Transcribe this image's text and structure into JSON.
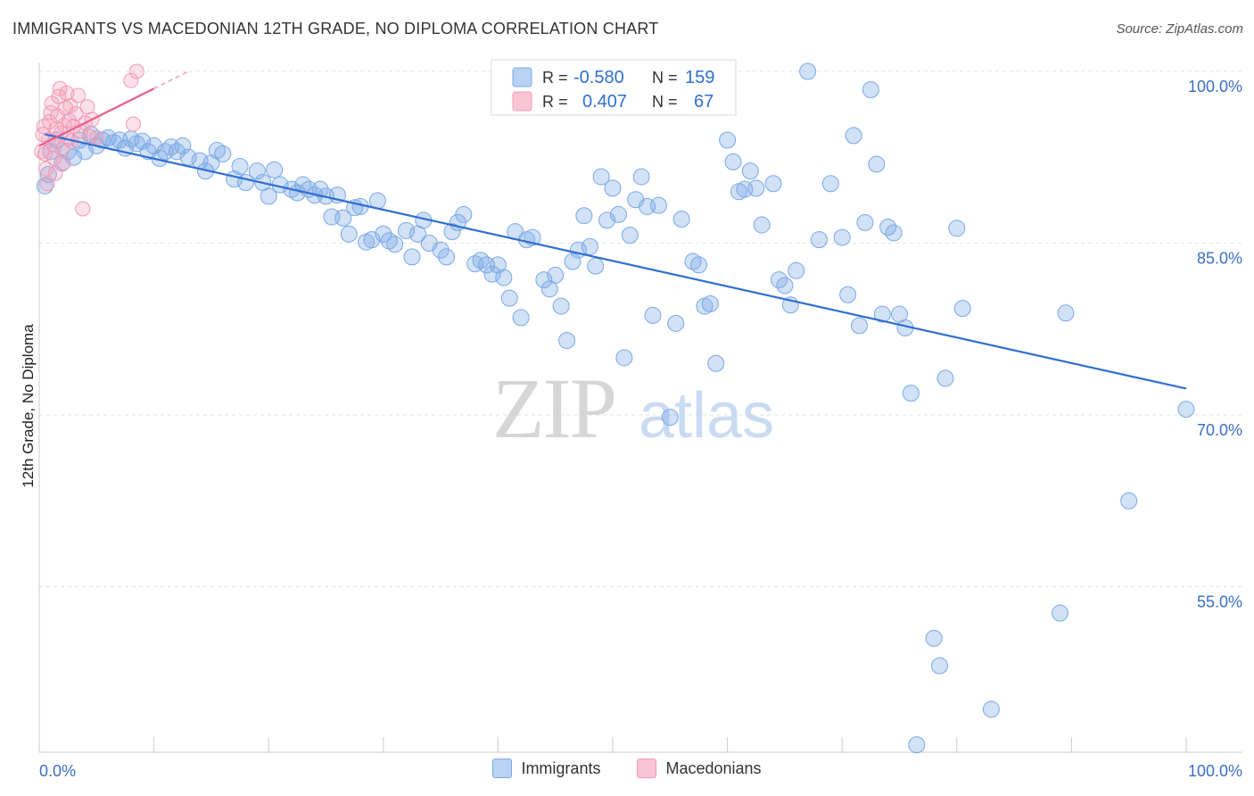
{
  "title": "IMMIGRANTS VS MACEDONIAN 12TH GRADE, NO DIPLOMA CORRELATION CHART",
  "source": "Source: ZipAtlas.com",
  "watermark": {
    "zip": "ZIP",
    "atlas": "atlas"
  },
  "legend_top": [
    {
      "r_label": "R =",
      "r_value": "-0.580",
      "n_label": "N =",
      "n_value": "159"
    },
    {
      "r_label": "R =",
      "r_value": "0.407",
      "n_label": "N =",
      "n_value": "67"
    }
  ],
  "legend_bottom": [
    "Immigrants",
    "Macedonians"
  ],
  "colors": {
    "immigrants": "#7aa8e6",
    "immigrants_line": "#2f6fd1",
    "macedonians": "#f29ab5",
    "macedonians_line": "#e75f8c",
    "axis_text": "#3a6fc4"
  },
  "chart_data": {
    "type": "scatter",
    "title": "IMMIGRANTS VS MACEDONIAN 12TH GRADE, NO DIPLOMA CORRELATION CHART",
    "xlabel": "",
    "ylabel": "12th Grade, No Diploma",
    "xlim": [
      0,
      100
    ],
    "ylim": [
      40,
      101
    ],
    "x_tick_labels": [
      "0.0%",
      "100.0%"
    ],
    "y_ticks": [
      100,
      85,
      70,
      55
    ],
    "y_tick_labels": [
      "100.0%",
      "85.0%",
      "70.0%",
      "55.0%"
    ],
    "grid": true,
    "series": [
      {
        "name": "Immigrants",
        "r": -0.58,
        "n": 159,
        "trend": [
          [
            0.5,
            94.5
          ],
          [
            100,
            72.3
          ]
        ],
        "points": [
          [
            0.5,
            90
          ],
          [
            0.8,
            91
          ],
          [
            1,
            93
          ],
          [
            1.5,
            94
          ],
          [
            2,
            92
          ],
          [
            2.5,
            93
          ],
          [
            3,
            92.5
          ],
          [
            3.5,
            94
          ],
          [
            4,
            93
          ],
          [
            4.5,
            94.5
          ],
          [
            5,
            93.5
          ],
          [
            5.5,
            94
          ],
          [
            6,
            94.2
          ],
          [
            6.5,
            93.8
          ],
          [
            7,
            94
          ],
          [
            7.5,
            93.3
          ],
          [
            8,
            94.1
          ],
          [
            8.5,
            93.7
          ],
          [
            9,
            93.9
          ],
          [
            9.5,
            93
          ],
          [
            10,
            93.5
          ],
          [
            10.5,
            92.4
          ],
          [
            11,
            93
          ],
          [
            11.5,
            93.4
          ],
          [
            12,
            93
          ],
          [
            12.5,
            93.5
          ],
          [
            13,
            92.5
          ],
          [
            14,
            92.2
          ],
          [
            14.5,
            91.3
          ],
          [
            15,
            92
          ],
          [
            15.5,
            93.1
          ],
          [
            16,
            92.8
          ],
          [
            17,
            90.6
          ],
          [
            17.5,
            91.7
          ],
          [
            18,
            90.3
          ],
          [
            19,
            91.3
          ],
          [
            19.5,
            90.3
          ],
          [
            20,
            89.1
          ],
          [
            20.5,
            91.4
          ],
          [
            21,
            90.1
          ],
          [
            22,
            89.7
          ],
          [
            22.5,
            89.4
          ],
          [
            23,
            90.1
          ],
          [
            23.5,
            89.7
          ],
          [
            24,
            89.2
          ],
          [
            24.5,
            89.7
          ],
          [
            25,
            89.1
          ],
          [
            25.5,
            87.3
          ],
          [
            26,
            89.2
          ],
          [
            26.5,
            87.2
          ],
          [
            27,
            85.8
          ],
          [
            27.5,
            88.1
          ],
          [
            28,
            88.2
          ],
          [
            28.5,
            85.1
          ],
          [
            29,
            85.3
          ],
          [
            29.5,
            88.7
          ],
          [
            30,
            85.8
          ],
          [
            30.5,
            85.2
          ],
          [
            31,
            84.9
          ],
          [
            32,
            86.1
          ],
          [
            32.5,
            83.8
          ],
          [
            33,
            85.8
          ],
          [
            33.5,
            87
          ],
          [
            34,
            85
          ],
          [
            35,
            84.4
          ],
          [
            35.5,
            83.8
          ],
          [
            36,
            86
          ],
          [
            36.5,
            86.8
          ],
          [
            37,
            87.5
          ],
          [
            38,
            83.2
          ],
          [
            38.5,
            83.5
          ],
          [
            39,
            83.1
          ],
          [
            39.5,
            82.3
          ],
          [
            40,
            83.1
          ],
          [
            40.5,
            82
          ],
          [
            41,
            80.2
          ],
          [
            41.5,
            86
          ],
          [
            42,
            78.5
          ],
          [
            42.5,
            85.3
          ],
          [
            43,
            85.5
          ],
          [
            44,
            81.8
          ],
          [
            44.5,
            81
          ],
          [
            45,
            82.2
          ],
          [
            45.5,
            79.5
          ],
          [
            46,
            76.5
          ],
          [
            46.5,
            83.4
          ],
          [
            47,
            84.4
          ],
          [
            47.5,
            87.4
          ],
          [
            48,
            84.7
          ],
          [
            48.5,
            83
          ],
          [
            49,
            90.8
          ],
          [
            49.5,
            87
          ],
          [
            50,
            89.8
          ],
          [
            50.5,
            87.5
          ],
          [
            51,
            75
          ],
          [
            51.5,
            85.7
          ],
          [
            52,
            88.8
          ],
          [
            52.5,
            90.8
          ],
          [
            53,
            88.2
          ],
          [
            53.5,
            78.7
          ],
          [
            54,
            88.3
          ],
          [
            55,
            69.8
          ],
          [
            55.5,
            78
          ],
          [
            56,
            87.1
          ],
          [
            57,
            83.4
          ],
          [
            57.5,
            83.1
          ],
          [
            58,
            79.5
          ],
          [
            58.5,
            79.7
          ],
          [
            59,
            74.5
          ],
          [
            60,
            94
          ],
          [
            60.5,
            92.1
          ],
          [
            61,
            89.5
          ],
          [
            61.5,
            89.7
          ],
          [
            62,
            91.3
          ],
          [
            62.5,
            89.8
          ],
          [
            63,
            86.6
          ],
          [
            64,
            90.2
          ],
          [
            64.5,
            81.8
          ],
          [
            65,
            81.3
          ],
          [
            65.5,
            79.6
          ],
          [
            66,
            82.6
          ],
          [
            67,
            100
          ],
          [
            68,
            85.3
          ],
          [
            69,
            90.2
          ],
          [
            70,
            85.5
          ],
          [
            70.5,
            80.5
          ],
          [
            71,
            94.4
          ],
          [
            71.5,
            77.8
          ],
          [
            72,
            86.8
          ],
          [
            72.5,
            98.4
          ],
          [
            73,
            91.9
          ],
          [
            73.5,
            78.8
          ],
          [
            74,
            86.4
          ],
          [
            74.5,
            85.9
          ],
          [
            75,
            78.8
          ],
          [
            75.5,
            77.6
          ],
          [
            76,
            71.9
          ],
          [
            76.5,
            41.2
          ],
          [
            78,
            50.5
          ],
          [
            78.5,
            48.1
          ],
          [
            79,
            73.2
          ],
          [
            80,
            86.3
          ],
          [
            80.5,
            79.3
          ],
          [
            83,
            44.3
          ],
          [
            89,
            52.7
          ],
          [
            89.5,
            78.9
          ],
          [
            95,
            62.5
          ],
          [
            100,
            70.5
          ]
        ]
      },
      {
        "name": "Macedonians",
        "r": 0.407,
        "n": 67,
        "trend": [
          [
            0,
            93.5
          ],
          [
            10,
            98.5
          ]
        ],
        "points": [
          [
            0.2,
            93
          ],
          [
            0.3,
            94.5
          ],
          [
            0.4,
            95.2
          ],
          [
            0.5,
            92.8
          ],
          [
            0.6,
            91.5
          ],
          [
            0.7,
            90.2
          ],
          [
            0.8,
            94
          ],
          [
            0.9,
            95.6
          ],
          [
            1,
            96.4
          ],
          [
            1.1,
            97.2
          ],
          [
            1.2,
            93.6
          ],
          [
            1.3,
            92.4
          ],
          [
            1.4,
            91.1
          ],
          [
            1.5,
            95
          ],
          [
            1.6,
            96.1
          ],
          [
            1.7,
            97.8
          ],
          [
            1.8,
            98.5
          ],
          [
            1.9,
            94.6
          ],
          [
            2,
            93.2
          ],
          [
            2.1,
            92
          ],
          [
            2.2,
            95.3
          ],
          [
            2.3,
            96.8
          ],
          [
            2.4,
            98.1
          ],
          [
            2.5,
            94.1
          ],
          [
            2.6,
            95.7
          ],
          [
            2.7,
            97
          ],
          [
            2.8,
            93.9
          ],
          [
            3,
            95.2
          ],
          [
            3.2,
            96.3
          ],
          [
            3.4,
            97.9
          ],
          [
            3.6,
            94.8
          ],
          [
            3.8,
            88
          ],
          [
            4,
            95.5
          ],
          [
            4.2,
            96.9
          ],
          [
            4.4,
            94.3
          ],
          [
            4.6,
            95.8
          ],
          [
            5,
            94.2
          ],
          [
            8,
            99.2
          ],
          [
            8.2,
            95.4
          ],
          [
            8.5,
            100
          ]
        ]
      }
    ]
  }
}
